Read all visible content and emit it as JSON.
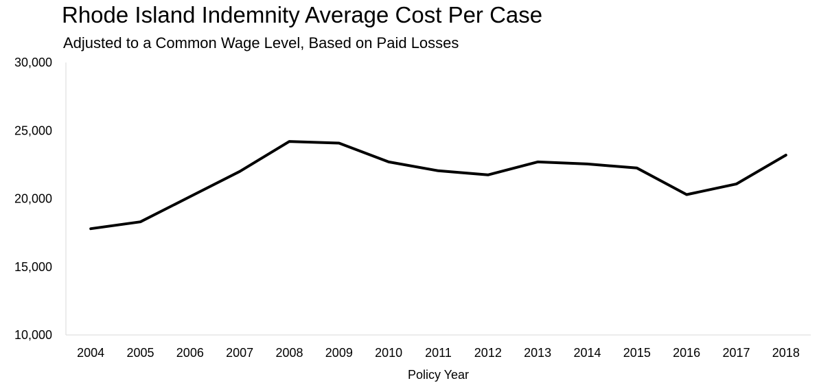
{
  "chart_data": {
    "type": "line",
    "title": "Rhode Island Indemnity Average Cost Per Case",
    "subtitle": "Adjusted to a Common Wage Level, Based on Paid Losses",
    "xlabel": "Policy Year",
    "ylabel": "",
    "categories": [
      "2004",
      "2005",
      "2006",
      "2007",
      "2008",
      "2009",
      "2010",
      "2011",
      "2012",
      "2013",
      "2014",
      "2015",
      "2016",
      "2017",
      "2018"
    ],
    "series": [
      {
        "values": [
          17800,
          18300,
          20150,
          22000,
          24200,
          24080,
          22700,
          22050,
          21750,
          22700,
          22550,
          22250,
          20300,
          21080,
          23200
        ]
      }
    ],
    "ylim": [
      10000,
      30000
    ],
    "yticks": [
      10000,
      15000,
      20000,
      25000,
      30000
    ],
    "ytick_labels": [
      "10,000",
      "15,000",
      "20,000",
      "25,000",
      "30,000"
    ],
    "grid": false,
    "legend": "none",
    "line_color": "#000000",
    "axis_color": "#d9d9d9"
  }
}
